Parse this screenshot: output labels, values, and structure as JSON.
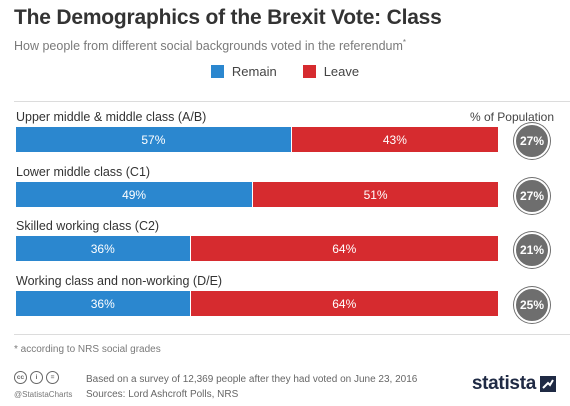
{
  "title": "The Demographics of the Brexit Vote: Class",
  "subtitle": "How people from different social backgrounds voted in the referendum",
  "subtitle_marker": "*",
  "legend": [
    {
      "label": "Remain",
      "color": "#2b87cf"
    },
    {
      "label": "Leave",
      "color": "#d62b2f"
    }
  ],
  "population_header": "% of Population",
  "chart_data": {
    "type": "bar",
    "orientation": "horizontal",
    "stacked": true,
    "value_format": "percent",
    "categories": [
      "Upper middle & middle class (A/B)",
      "Lower middle class (C1)",
      "Skilled working class (C2)",
      "Working class and non-working (D/E)"
    ],
    "series": [
      {
        "name": "Remain",
        "color": "#2b87cf",
        "values": [
          57,
          49,
          36,
          36
        ]
      },
      {
        "name": "Leave",
        "color": "#d62b2f",
        "values": [
          43,
          51,
          64,
          64
        ]
      }
    ],
    "population_share": [
      27,
      27,
      21,
      25
    ],
    "population_color": "#6e6e6e",
    "xlim": [
      0,
      100
    ]
  },
  "footnote": "* according to NRS social grades",
  "source_lines": [
    "Based on a survey of 12,369 people after they had voted on June 23, 2016",
    "Sources: Lord Ashcroft Polls, NRS"
  ],
  "handle": "@StatistaCharts",
  "cc_icons": [
    "cc",
    "i",
    "="
  ],
  "brand": "statista"
}
